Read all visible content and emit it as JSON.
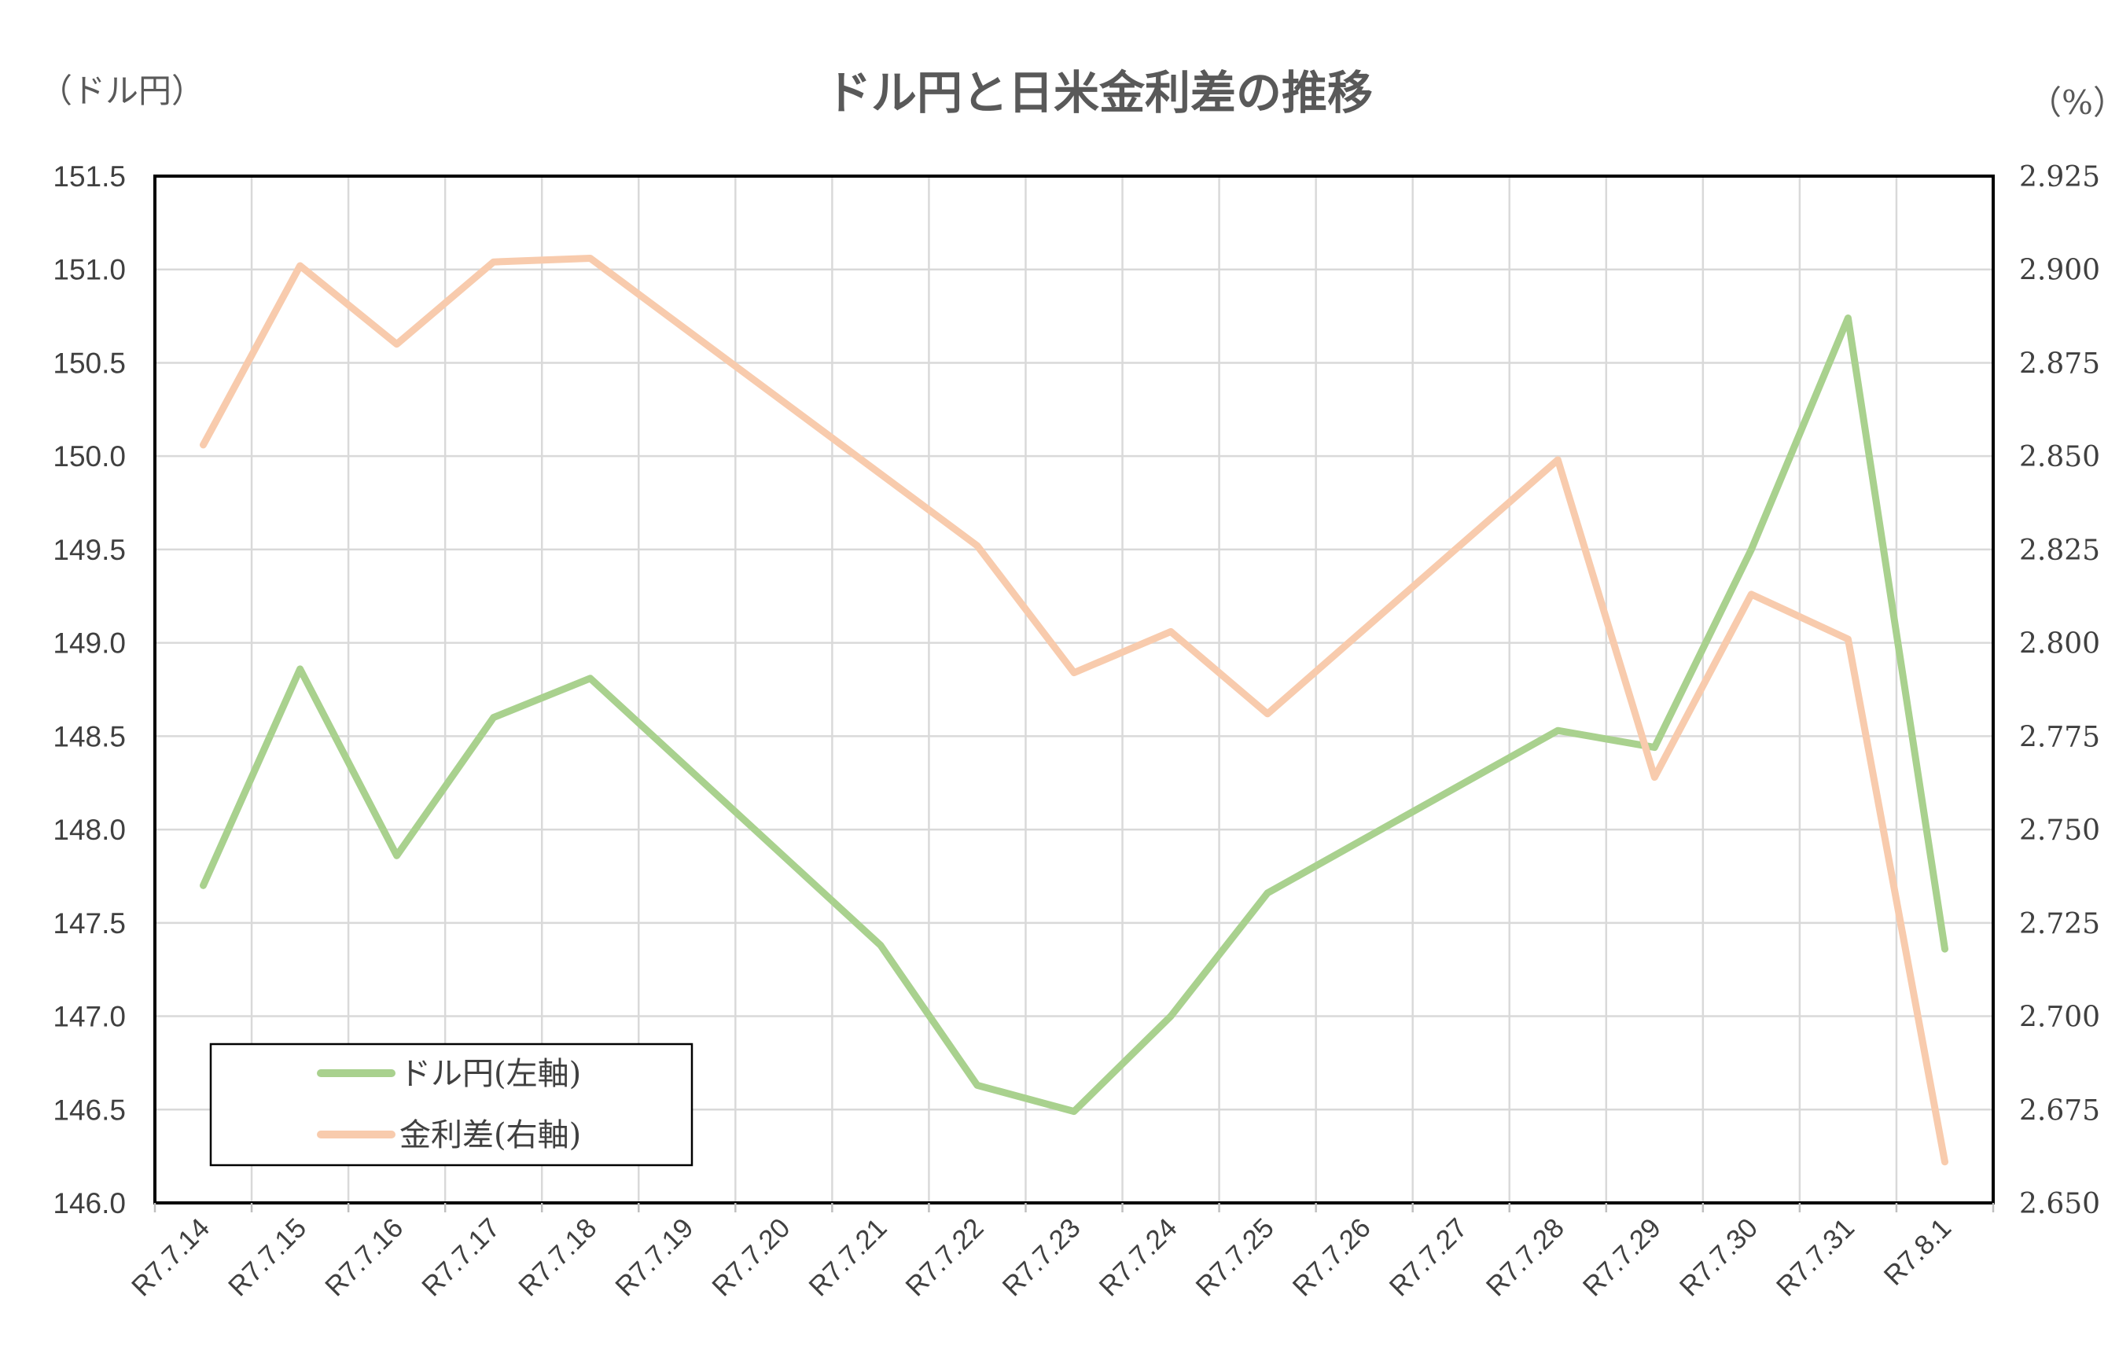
{
  "chart_data": {
    "type": "line",
    "title": "ドル円と日米金利差の推移",
    "y_left_unit": "（ドル円）",
    "y_right_unit": "（%）",
    "categories": [
      "R7.7.14",
      "R7.7.15",
      "R7.7.16",
      "R7.7.17",
      "R7.7.18",
      "R7.7.19",
      "R7.7.20",
      "R7.7.21",
      "R7.7.22",
      "R7.7.23",
      "R7.7.24",
      "R7.7.25",
      "R7.7.26",
      "R7.7.27",
      "R7.7.28",
      "R7.7.29",
      "R7.7.30",
      "R7.7.31",
      "R7.8.1"
    ],
    "ylim_left": [
      146.0,
      151.5
    ],
    "ylim_right": [
      2.65,
      2.925
    ],
    "yticks_left": [
      "151.5",
      "151.0",
      "150.5",
      "150.0",
      "149.5",
      "149.0",
      "148.5",
      "148.0",
      "147.5",
      "147.0",
      "146.5",
      "146.0"
    ],
    "yticks_right": [
      "2.925",
      "2.900",
      "2.875",
      "2.850",
      "2.825",
      "2.800",
      "2.775",
      "2.750",
      "2.725",
      "2.700",
      "2.675",
      "2.650"
    ],
    "grid": true,
    "legend_position": "bottom-left",
    "series": [
      {
        "name": "ドル円(左軸)",
        "axis": "left",
        "color": "#A9D18E",
        "points": [
          {
            "x": "R7.7.14",
            "y": 147.7
          },
          {
            "x": "R7.7.15",
            "y": 148.86
          },
          {
            "x": "R7.7.16",
            "y": 147.86
          },
          {
            "x": "R7.7.17",
            "y": 148.6
          },
          {
            "x": "R7.7.18",
            "y": 148.81
          },
          {
            "x": "R7.7.21",
            "y": 147.38
          },
          {
            "x": "R7.7.22",
            "y": 146.63
          },
          {
            "x": "R7.7.23",
            "y": 146.49
          },
          {
            "x": "R7.7.24",
            "y": 147.0
          },
          {
            "x": "R7.7.25",
            "y": 147.66
          },
          {
            "x": "R7.7.28",
            "y": 148.53
          },
          {
            "x": "R7.7.29",
            "y": 148.44
          },
          {
            "x": "R7.7.30",
            "y": 149.5
          },
          {
            "x": "R7.7.31",
            "y": 150.74
          },
          {
            "x": "R7.8.1",
            "y": 147.36
          }
        ]
      },
      {
        "name": "金利差(右軸)",
        "axis": "right",
        "color": "#F8CBAD",
        "points": [
          {
            "x": "R7.7.14",
            "y": 2.853
          },
          {
            "x": "R7.7.15",
            "y": 2.901
          },
          {
            "x": "R7.7.16",
            "y": 2.88
          },
          {
            "x": "R7.7.17",
            "y": 2.902
          },
          {
            "x": "R7.7.18",
            "y": 2.903
          },
          {
            "x": "R7.7.22",
            "y": 2.826
          },
          {
            "x": "R7.7.23",
            "y": 2.792
          },
          {
            "x": "R7.7.24",
            "y": 2.803
          },
          {
            "x": "R7.7.25",
            "y": 2.781
          },
          {
            "x": "R7.7.28",
            "y": 2.849
          },
          {
            "x": "R7.7.29",
            "y": 2.764
          },
          {
            "x": "R7.7.30",
            "y": 2.813
          },
          {
            "x": "R7.7.31",
            "y": 2.801
          },
          {
            "x": "R7.8.1",
            "y": 2.661
          }
        ]
      }
    ]
  }
}
